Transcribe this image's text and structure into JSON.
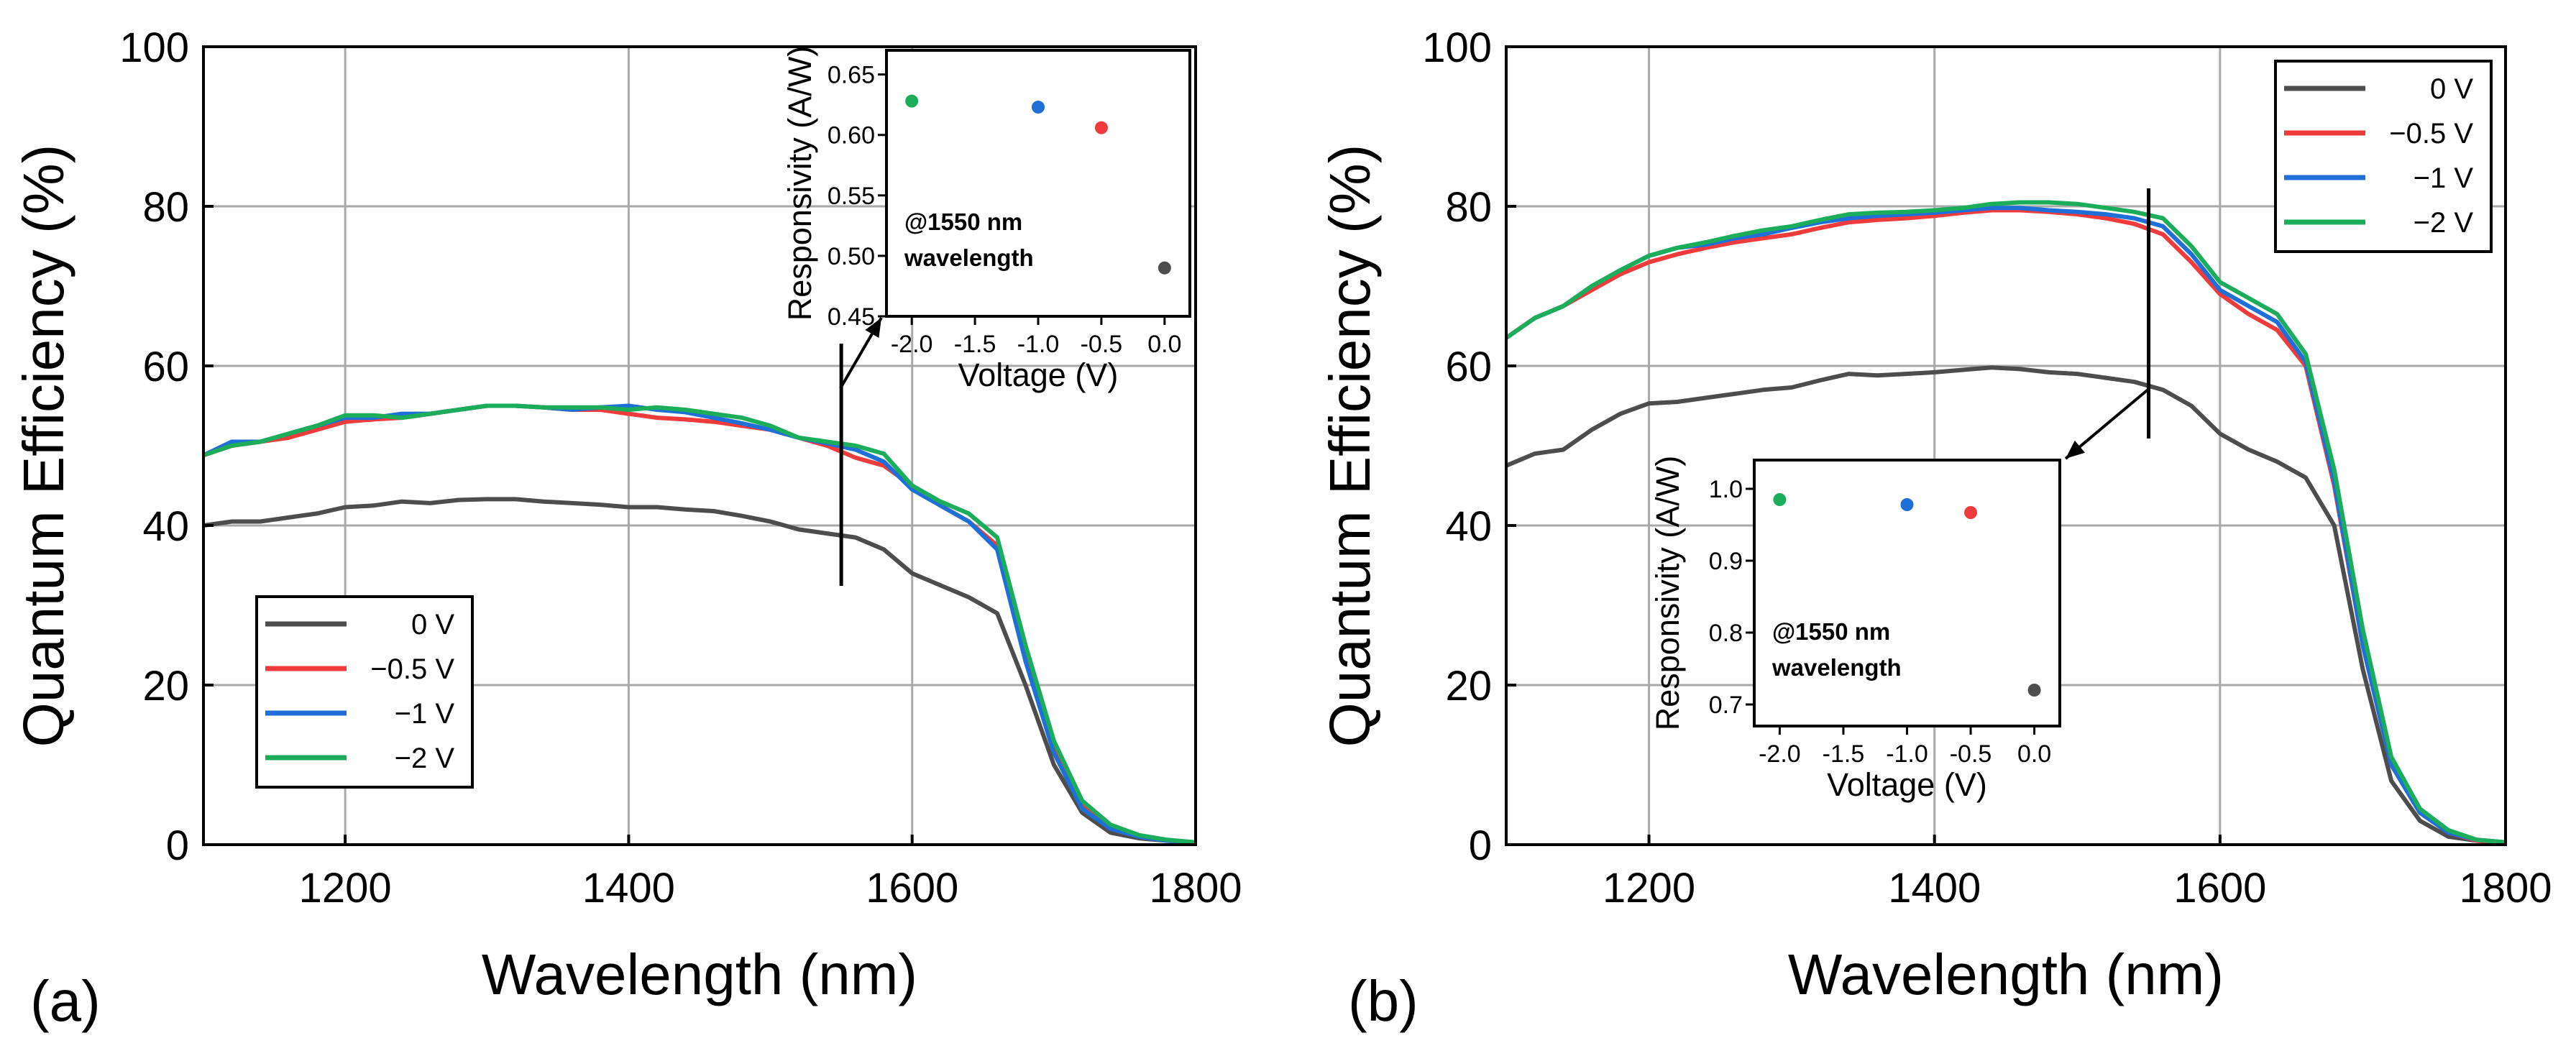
{
  "chart_data": [
    {
      "type": "line",
      "panel_label": "(a)",
      "xlabel": "Wavelength (nm)",
      "ylabel": "Quantum Efficiency (%)",
      "xlim": [
        1100,
        1800
      ],
      "ylim": [
        0,
        100
      ],
      "xticks": [
        1200,
        1400,
        1600,
        1800
      ],
      "yticks": [
        0,
        20,
        40,
        60,
        80,
        100
      ],
      "grid": true,
      "legend_position": "bottom-left",
      "marker_wavelength": 1550,
      "x": [
        1100,
        1120,
        1140,
        1160,
        1180,
        1200,
        1220,
        1240,
        1260,
        1280,
        1300,
        1320,
        1340,
        1360,
        1380,
        1400,
        1420,
        1440,
        1460,
        1480,
        1500,
        1520,
        1540,
        1560,
        1580,
        1600,
        1620,
        1640,
        1660,
        1680,
        1700,
        1720,
        1740,
        1760,
        1780,
        1800
      ],
      "series": [
        {
          "name": "0 V",
          "color": "#4d4d4d",
          "values": [
            40,
            40.5,
            40.5,
            41,
            41.5,
            42.3,
            42.5,
            43,
            42.8,
            43.2,
            43.3,
            43.3,
            43,
            42.8,
            42.6,
            42.3,
            42.3,
            42,
            41.8,
            41.2,
            40.5,
            39.5,
            39,
            38.5,
            37,
            34,
            32.5,
            31,
            29,
            20,
            10,
            4,
            1.5,
            0.8,
            0.5,
            0.3
          ]
        },
        {
          "name": "−0.5 V",
          "color": "#ef3b3b",
          "values": [
            48.8,
            50,
            50.5,
            51,
            52,
            53,
            53.3,
            53.5,
            54,
            54.5,
            55,
            55,
            54.8,
            54.5,
            54.5,
            54,
            53.5,
            53.3,
            53,
            52.5,
            52,
            51,
            50,
            48.5,
            47.5,
            45,
            42.5,
            40.5,
            37.5,
            24,
            12,
            5,
            2,
            1,
            0.5,
            0.3
          ]
        },
        {
          "name": "−1 V",
          "color": "#1f6fd8",
          "values": [
            48.8,
            50.5,
            50.5,
            51.5,
            52.5,
            53.5,
            53.5,
            54,
            54,
            54.5,
            55,
            55,
            54.8,
            54.5,
            54.8,
            55,
            54.5,
            54.2,
            53.5,
            52.8,
            52,
            51,
            50.3,
            49.5,
            48,
            44.5,
            42.5,
            40.5,
            37,
            23,
            11.5,
            4.5,
            2,
            1,
            0.5,
            0.3
          ]
        },
        {
          "name": "−2 V",
          "color": "#1cad5a",
          "values": [
            48.8,
            50,
            50.5,
            51.5,
            52.5,
            53.8,
            53.8,
            53.5,
            54,
            54.5,
            55,
            55,
            54.8,
            54.8,
            54.8,
            54.5,
            54.8,
            54.5,
            54,
            53.5,
            52.5,
            51,
            50.5,
            50,
            49,
            45,
            43,
            41.5,
            38.5,
            25,
            13,
            5.5,
            2.5,
            1.2,
            0.6,
            0.3
          ]
        }
      ],
      "inset": {
        "xlabel": "Voltage (V)",
        "ylabel": "Responsivity (A/W)",
        "xlim": [
          -2.2,
          0.2
        ],
        "ylim": [
          0.45,
          0.67
        ],
        "xticks": [
          "-2.0",
          "-1.5",
          "-1.0",
          "-0.5",
          "0.0"
        ],
        "yticks": [
          "0.45",
          "0.50",
          "0.55",
          "0.60",
          "0.65"
        ],
        "note_line1": "@1550 nm",
        "note_line2": "wavelength",
        "points": [
          {
            "x": -2.0,
            "y": 0.628,
            "color": "#1cad5a"
          },
          {
            "x": -1.0,
            "y": 0.623,
            "color": "#1f6fd8"
          },
          {
            "x": -0.5,
            "y": 0.606,
            "color": "#ef3b3b"
          },
          {
            "x": 0.0,
            "y": 0.49,
            "color": "#4d4d4d"
          }
        ]
      }
    },
    {
      "type": "line",
      "panel_label": "(b)",
      "xlabel": "Wavelength (nm)",
      "ylabel": "Quantum Efficiency (%)",
      "xlim": [
        1100,
        1800
      ],
      "ylim": [
        0,
        100
      ],
      "xticks": [
        1200,
        1400,
        1600,
        1800
      ],
      "yticks": [
        0,
        20,
        40,
        60,
        80,
        100
      ],
      "grid": true,
      "legend_position": "top-right",
      "marker_wavelength": 1550,
      "x": [
        1100,
        1120,
        1140,
        1160,
        1180,
        1200,
        1220,
        1240,
        1260,
        1280,
        1300,
        1320,
        1340,
        1360,
        1380,
        1400,
        1420,
        1440,
        1460,
        1480,
        1500,
        1520,
        1540,
        1560,
        1580,
        1600,
        1620,
        1640,
        1660,
        1680,
        1700,
        1720,
        1740,
        1760,
        1780,
        1800
      ],
      "series": [
        {
          "name": "0 V",
          "color": "#4d4d4d",
          "values": [
            47.5,
            49,
            49.5,
            52,
            54,
            55.3,
            55.5,
            56,
            56.5,
            57,
            57.3,
            58.2,
            59,
            58.8,
            59,
            59.2,
            59.5,
            59.8,
            59.6,
            59.2,
            59,
            58.5,
            58,
            57,
            55,
            51.5,
            49.5,
            48,
            46,
            40,
            22,
            8,
            3,
            1,
            0.5,
            0.3
          ]
        },
        {
          "name": "−0.5 V",
          "color": "#ef3b3b",
          "values": [
            63.5,
            66,
            67.5,
            69.5,
            71.5,
            73,
            74,
            74.8,
            75.5,
            76,
            76.5,
            77.3,
            78,
            78.3,
            78.5,
            78.8,
            79.2,
            79.5,
            79.5,
            79.3,
            79,
            78.5,
            77.8,
            76.5,
            73,
            69,
            66.5,
            64.5,
            60,
            45,
            25,
            10,
            4,
            1.5,
            0.5,
            0.3
          ]
        },
        {
          "name": "−1 V",
          "color": "#1f6fd8",
          "values": [
            63.5,
            66,
            67.5,
            70,
            72,
            73.8,
            74.8,
            75.2,
            76,
            76.5,
            77.3,
            78,
            78.5,
            78.8,
            79,
            79.2,
            79.5,
            79.8,
            79.8,
            79.5,
            79.3,
            79,
            78.5,
            77.5,
            74,
            69.5,
            67.5,
            65.5,
            60.5,
            45.5,
            25,
            10,
            4,
            1.5,
            0.6,
            0.3
          ]
        },
        {
          "name": "−2 V",
          "color": "#1cad5a",
          "values": [
            63.5,
            66,
            67.5,
            70,
            72,
            73.8,
            74.8,
            75.5,
            76.3,
            77,
            77.5,
            78.3,
            79,
            79.2,
            79.3,
            79.5,
            79.8,
            80.3,
            80.5,
            80.5,
            80.3,
            79.8,
            79.3,
            78.5,
            75,
            70.5,
            68.5,
            66.5,
            61.5,
            47,
            27,
            11,
            4.5,
            1.8,
            0.6,
            0.3
          ]
        }
      ],
      "inset": {
        "xlabel": "Voltage (V)",
        "ylabel": "Responsivity (A/W)",
        "xlim": [
          -2.2,
          0.2
        ],
        "ylim": [
          0.67,
          1.04
        ],
        "xticks": [
          "-2.0",
          "-1.5",
          "-1.0",
          "-0.5",
          "0.0"
        ],
        "yticks": [
          "0.7",
          "0.8",
          "0.9",
          "1.0"
        ],
        "note_line1": "@1550 nm",
        "note_line2": "wavelength",
        "points": [
          {
            "x": -2.0,
            "y": 0.985,
            "color": "#1cad5a"
          },
          {
            "x": -1.0,
            "y": 0.978,
            "color": "#1f6fd8"
          },
          {
            "x": -0.5,
            "y": 0.967,
            "color": "#ef3b3b"
          },
          {
            "x": 0.0,
            "y": 0.72,
            "color": "#4d4d4d"
          }
        ]
      }
    }
  ]
}
